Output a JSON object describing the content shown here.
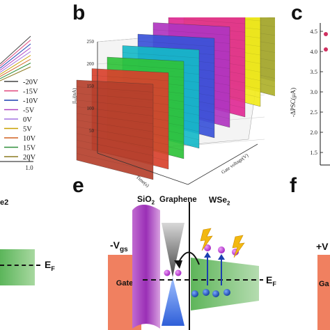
{
  "panels": {
    "b": "b",
    "c": "c",
    "e": "e",
    "f": "f"
  },
  "panel_a": {
    "x_tick": "1.0",
    "legend": [
      {
        "label": "-20V",
        "color": "#444444"
      },
      {
        "label": "-15V",
        "color": "#e0457b"
      },
      {
        "label": "-10V",
        "color": "#1a3fb0"
      },
      {
        "label": "-5V",
        "color": "#b040c0"
      },
      {
        "label": "0V",
        "color": "#a070e0"
      },
      {
        "label": "5V",
        "color": "#c8a000"
      },
      {
        "label": "10V",
        "color": "#d06020"
      },
      {
        "label": "15V",
        "color": "#2f8f3a"
      },
      {
        "label": "20V",
        "color": "#8c7a20"
      }
    ],
    "bottom_fragment": "e2",
    "ef_label": "E",
    "ef_sub": "F"
  },
  "panel_b": {
    "y_ticks": [
      "50",
      "100",
      "150",
      "200",
      "250"
    ],
    "y_label": "|Iₓₓ|(nA)",
    "x_label": "Time(s)",
    "z_label": "Gate voltage(V)",
    "slab_colors": [
      "#b5402c",
      "#d8412c",
      "#2fc23a",
      "#16b8c8",
      "#3a52d8",
      "#b035c0",
      "#e02a94",
      "#f2ea1c",
      "#aeb02a",
      "#6b6bd0"
    ]
  },
  "panel_c": {
    "y_ticks": [
      "4.5",
      "4.0",
      "3.5",
      "3.0",
      "2.5",
      "2.0",
      "1.5"
    ],
    "y_label": "-ΔPSC(μA)"
  },
  "panel_e": {
    "sio2": "SiO",
    "sio2_sub": "2",
    "graphene": "Graphene",
    "wse2": "WSe",
    "wse2_sub": "2",
    "vgs": "-V",
    "vgs_sub": "gs",
    "gate": "Gate",
    "ef": "E",
    "ef_sub": "F"
  },
  "panel_f": {
    "vgs": "+V",
    "gate": "Ga"
  }
}
